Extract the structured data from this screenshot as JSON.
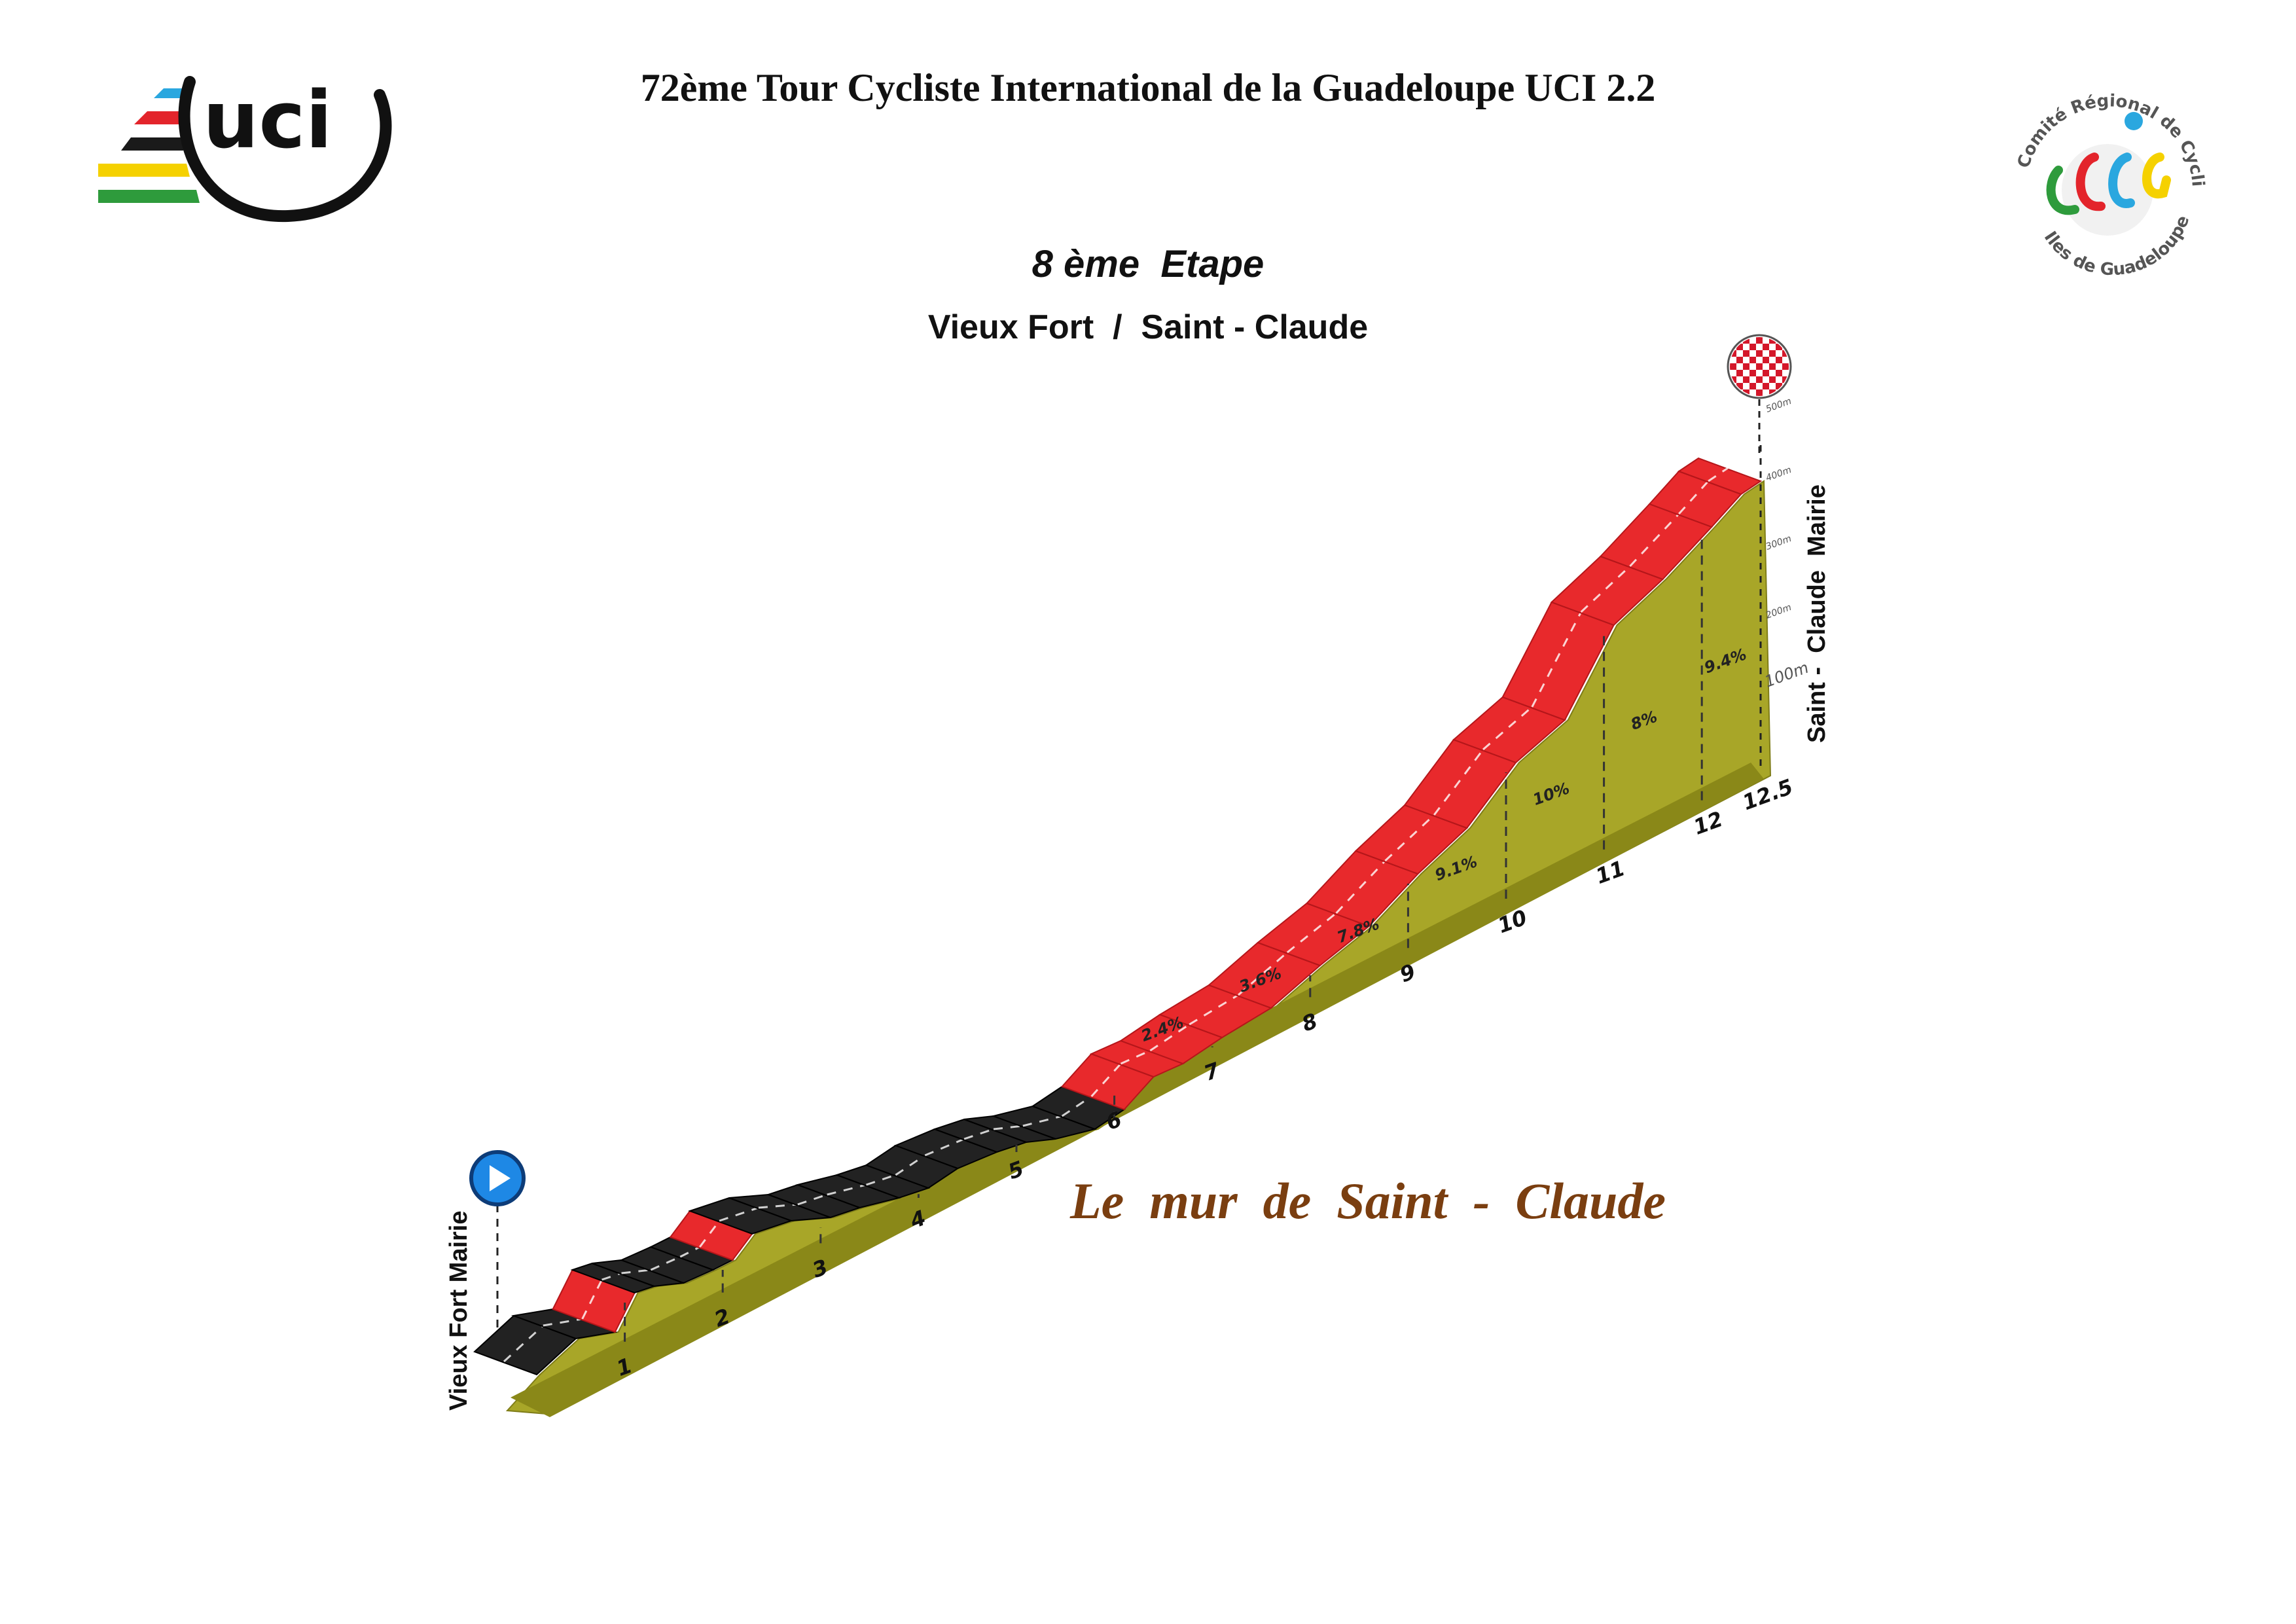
{
  "header": {
    "title": "72ème Tour Cycliste International de la Guadeloupe UCI 2.2",
    "stage": "8 ème  Etape",
    "route": "Vieux Fort  /  Saint - Claude"
  },
  "logos": {
    "uci": {
      "text": "uci",
      "stripe_colors": [
        "#2aa7df",
        "#e3242b",
        "#1a1a1a",
        "#f5d100",
        "#2e9b3c"
      ]
    },
    "comite": {
      "text_top": "Comité Régional de Cyclisme",
      "text_bottom": "Iles de Guadeloupe",
      "initials": "CRCG"
    }
  },
  "profile": {
    "start_label": "Vieux Fort Mairie",
    "finish_label": "Saint -  Claude  Mairie",
    "climb_name": "Le  mur  de  Saint  -  Claude",
    "km_markers": [
      "1",
      "2",
      "3",
      "4",
      "5",
      "6",
      "7",
      "8",
      "9",
      "10",
      "11",
      "12",
      "12.5"
    ],
    "gradients": [
      {
        "km": 6.5,
        "label": "2.4%"
      },
      {
        "km": 7.5,
        "label": "3.6%"
      },
      {
        "km": 8.5,
        "label": "7.8%"
      },
      {
        "km": 9.5,
        "label": "9.1%"
      },
      {
        "km": 10.5,
        "label": "10%"
      },
      {
        "km": 11.5,
        "label": "8%"
      },
      {
        "km": 12.25,
        "label": "9.4%"
      }
    ],
    "altitude_scale": [
      "100m",
      "200m",
      "300m",
      "400m",
      "500m"
    ],
    "colors": {
      "road_dark": "#222222",
      "road_steep": "#e8292c",
      "ground": "#a8a628",
      "start_icon": "#1e88e5"
    }
  }
}
